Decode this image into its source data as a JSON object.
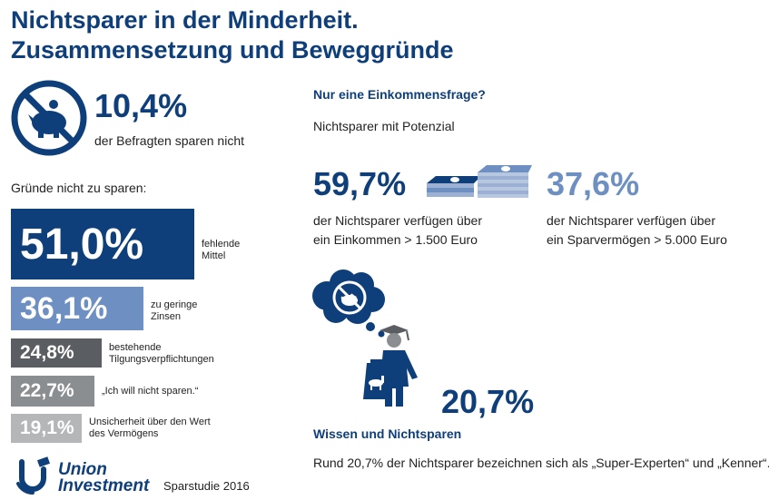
{
  "title_line1": "Nichtsparer in der Minderheit.",
  "title_line2": "Zusammensetzung und Beweggründe",
  "headline": {
    "value": "10,4%",
    "caption": "der Befragten sparen nicht"
  },
  "reasons_heading": "Gründe nicht zu sparen:",
  "reasons": [
    {
      "value": "51,0%",
      "label": "fehlende\nMittel",
      "color": "#0f3f7a"
    },
    {
      "value": "36,1%",
      "label": "zu geringe\nZinsen",
      "color": "#6d8fc2"
    },
    {
      "value": "24,8%",
      "label": "bestehende\nTilgungsverpflichtungen",
      "color": "#5a5d61"
    },
    {
      "value": "22,7%",
      "label": "„Ich will nicht sparen.“",
      "color": "#8b8e91"
    },
    {
      "value": "19,1%",
      "label": "Unsicherheit über den Wert\ndes Vermögens",
      "color": "#b4b6b8"
    }
  ],
  "income": {
    "heading": "Nur eine Einkommensfrage?",
    "subheading": "Nichtsparer mit Potenzial",
    "stat1_value": "59,7%",
    "stat1_text": "der Nichtsparer verfügen über\nein Einkommen > 1.500 Euro",
    "stat2_value": "37,6%",
    "stat2_text": "der Nichtsparer verfügen über\nein Sparvermögen > 5.000 Euro"
  },
  "knowledge": {
    "value": "20,7%",
    "heading": "Wissen und Nichtsparen",
    "text": "Rund 20,7% der Nichtsparer bezeichnen sich als „Super-Experten“ und „Kenner“."
  },
  "footer": {
    "brand_line1": "Union",
    "brand_line2": "Investment",
    "source": "Sparstudie 2016"
  },
  "colors": {
    "dark_blue": "#0f3f7a",
    "light_blue": "#6d8fc2",
    "dark_grey": "#5a5d61",
    "mid_grey": "#8b8e91",
    "light_grey": "#b4b6b8"
  },
  "icons": [
    "no-piggy-bank-icon",
    "banknote-stack-icon",
    "thought-bubble-icon",
    "graduate-with-bag-icon",
    "union-investment-logo-icon"
  ]
}
